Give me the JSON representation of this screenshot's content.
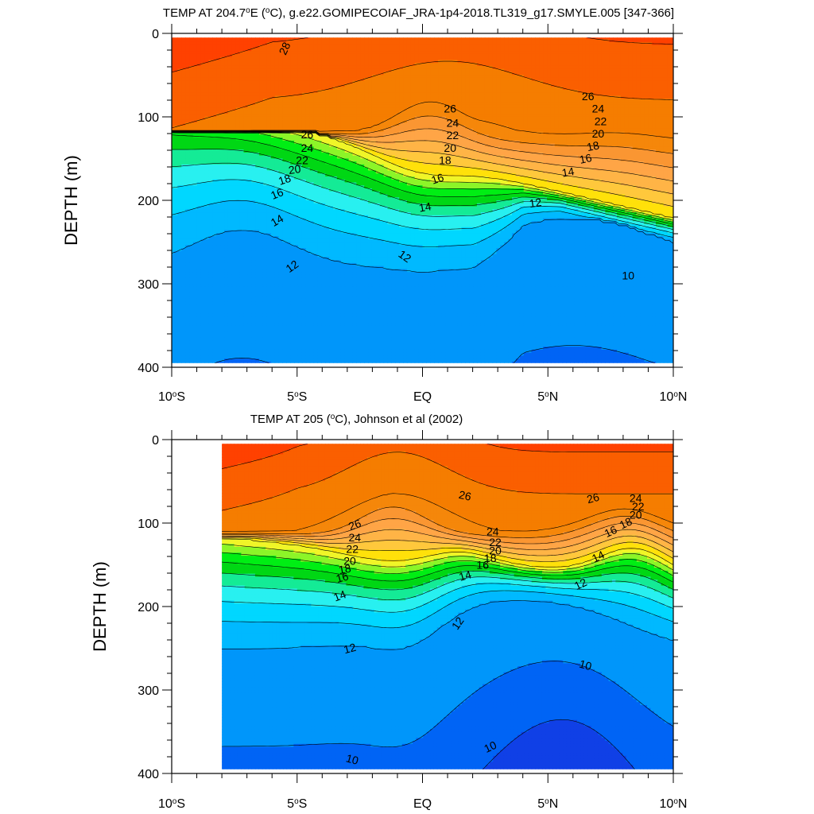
{
  "chart_data": [
    {
      "type": "filled-contour",
      "title": "TEMP AT 204.7°E (°C), g.e22.GOMIPECOIAF_JRA-1p4-2018.TL319_g17.SMYLE.005 [347-366]",
      "title_parts": {
        "pre": "TEMP AT 204.7",
        "sup1": "o",
        "mid": "E (",
        "sup2": "o",
        "post": "C), g.e22.GOMIPECOIAF_JRA-1p4-2018.TL319_g17.SMYLE.005 [347-366]"
      },
      "ylabel": "DEPTH (m)",
      "xlim": [
        -10,
        10
      ],
      "ylim": [
        0,
        400
      ],
      "y_reversed": true,
      "x_ticks": [
        {
          "v": -10,
          "num": "10",
          "hemi": "S"
        },
        {
          "v": -5,
          "num": "5",
          "hemi": "S"
        },
        {
          "v": 0,
          "num": "EQ",
          "hemi": ""
        },
        {
          "v": 5,
          "num": "5",
          "hemi": "N"
        },
        {
          "v": 10,
          "num": "10",
          "hemi": "N"
        }
      ],
      "y_ticks": [
        0,
        100,
        200,
        300,
        400
      ],
      "data_lat_range": [
        -10,
        10
      ],
      "contour_levels_min": 9,
      "contour_levels_max": 29,
      "contour_labels": [
        {
          "lat": -5.5,
          "depth": 18,
          "text": "28",
          "rot": -65
        },
        {
          "lat": 1.1,
          "depth": 90,
          "text": "26",
          "rot": 0
        },
        {
          "lat": 1.2,
          "depth": 107,
          "text": "24",
          "rot": 0
        },
        {
          "lat": 1.2,
          "depth": 122,
          "text": "22",
          "rot": 0
        },
        {
          "lat": 1.1,
          "depth": 137,
          "text": "20",
          "rot": 0
        },
        {
          "lat": 0.9,
          "depth": 152,
          "text": "18",
          "rot": 0
        },
        {
          "lat": 0.6,
          "depth": 174,
          "text": "16",
          "rot": -18
        },
        {
          "lat": 0.1,
          "depth": 208,
          "text": "14",
          "rot": -10
        },
        {
          "lat": -0.7,
          "depth": 267,
          "text": "12",
          "rot": 35
        },
        {
          "lat": -4.6,
          "depth": 121,
          "text": "26",
          "rot": 0
        },
        {
          "lat": -4.6,
          "depth": 137,
          "text": "24",
          "rot": 0
        },
        {
          "lat": -4.8,
          "depth": 152,
          "text": "22",
          "rot": 0
        },
        {
          "lat": -5.1,
          "depth": 163,
          "text": "20",
          "rot": -8
        },
        {
          "lat": -5.5,
          "depth": 175,
          "text": "18",
          "rot": -18
        },
        {
          "lat": -5.8,
          "depth": 192,
          "text": "16",
          "rot": -22
        },
        {
          "lat": -5.8,
          "depth": 224,
          "text": "14",
          "rot": -30
        },
        {
          "lat": -5.2,
          "depth": 279,
          "text": "12",
          "rot": -35
        },
        {
          "lat": 4.5,
          "depth": 203,
          "text": "12",
          "rot": -8
        },
        {
          "lat": 5.8,
          "depth": 166,
          "text": "14",
          "rot": -10
        },
        {
          "lat": 6.5,
          "depth": 150,
          "text": "16",
          "rot": -12
        },
        {
          "lat": 6.8,
          "depth": 135,
          "text": "18",
          "rot": -12
        },
        {
          "lat": 7.0,
          "depth": 120,
          "text": "20",
          "rot": 0
        },
        {
          "lat": 7.1,
          "depth": 105,
          "text": "22",
          "rot": 0
        },
        {
          "lat": 7.0,
          "depth": 90,
          "text": "24",
          "rot": 0
        },
        {
          "lat": 6.6,
          "depth": 75,
          "text": "26",
          "rot": 0
        },
        {
          "lat": 8.2,
          "depth": 290,
          "text": "10",
          "rot": 0
        }
      ]
    },
    {
      "type": "filled-contour",
      "title": "TEMP AT 205 (°C), Johnson et al (2002)",
      "title_parts": {
        "pre": "TEMP AT 205 (",
        "sup1": "o",
        "mid": "",
        "sup2": "",
        "post": "C), Johnson et al (2002)"
      },
      "ylabel": "DEPTH (m)",
      "xlim": [
        -10,
        10
      ],
      "ylim": [
        0,
        400
      ],
      "y_reversed": true,
      "x_ticks": [
        {
          "v": -10,
          "num": "10",
          "hemi": "S"
        },
        {
          "v": -5,
          "num": "5",
          "hemi": "S"
        },
        {
          "v": 0,
          "num": "EQ",
          "hemi": ""
        },
        {
          "v": 5,
          "num": "5",
          "hemi": "N"
        },
        {
          "v": 10,
          "num": "10",
          "hemi": "N"
        }
      ],
      "y_ticks": [
        0,
        100,
        200,
        300,
        400
      ],
      "data_lat_range": [
        -8,
        10
      ],
      "contour_levels_min": 9,
      "contour_levels_max": 29,
      "contour_labels": [
        {
          "lat": -2.7,
          "depth": 102,
          "text": "26",
          "rot": -20
        },
        {
          "lat": -2.7,
          "depth": 117,
          "text": "24",
          "rot": 0
        },
        {
          "lat": -2.8,
          "depth": 131,
          "text": "22",
          "rot": 0
        },
        {
          "lat": -2.9,
          "depth": 145,
          "text": "20",
          "rot": 0
        },
        {
          "lat": -3.1,
          "depth": 155,
          "text": "18",
          "rot": -10
        },
        {
          "lat": -3.2,
          "depth": 165,
          "text": "16",
          "rot": -15
        },
        {
          "lat": -3.3,
          "depth": 187,
          "text": "14",
          "rot": -20
        },
        {
          "lat": -2.9,
          "depth": 250,
          "text": "12",
          "rot": -15
        },
        {
          "lat": -2.8,
          "depth": 383,
          "text": "10",
          "rot": 15
        },
        {
          "lat": 1.7,
          "depth": 67,
          "text": "26",
          "rot": 12
        },
        {
          "lat": 2.8,
          "depth": 110,
          "text": "24",
          "rot": 0
        },
        {
          "lat": 2.9,
          "depth": 123,
          "text": "22",
          "rot": 0
        },
        {
          "lat": 2.9,
          "depth": 133,
          "text": "20",
          "rot": 0
        },
        {
          "lat": 2.7,
          "depth": 142,
          "text": "18",
          "rot": 0
        },
        {
          "lat": 2.4,
          "depth": 150,
          "text": "16",
          "rot": 0
        },
        {
          "lat": 1.7,
          "depth": 163,
          "text": "14",
          "rot": -15
        },
        {
          "lat": 1.4,
          "depth": 220,
          "text": "12",
          "rot": -55
        },
        {
          "lat": 2.7,
          "depth": 368,
          "text": "10",
          "rot": -25
        },
        {
          "lat": 6.5,
          "depth": 270,
          "text": "10",
          "rot": 15
        },
        {
          "lat": 6.8,
          "depth": 70,
          "text": "26",
          "rot": -15
        },
        {
          "lat": 8.5,
          "depth": 70,
          "text": "24",
          "rot": 0
        },
        {
          "lat": 8.6,
          "depth": 80,
          "text": "22",
          "rot": 0
        },
        {
          "lat": 8.5,
          "depth": 90,
          "text": "20",
          "rot": 0
        },
        {
          "lat": 8.1,
          "depth": 100,
          "text": "18",
          "rot": -25
        },
        {
          "lat": 7.5,
          "depth": 110,
          "text": "16",
          "rot": -25
        },
        {
          "lat": 7.0,
          "depth": 140,
          "text": "14",
          "rot": -25
        },
        {
          "lat": 6.3,
          "depth": 173,
          "text": "12",
          "rot": -25
        }
      ]
    }
  ]
}
